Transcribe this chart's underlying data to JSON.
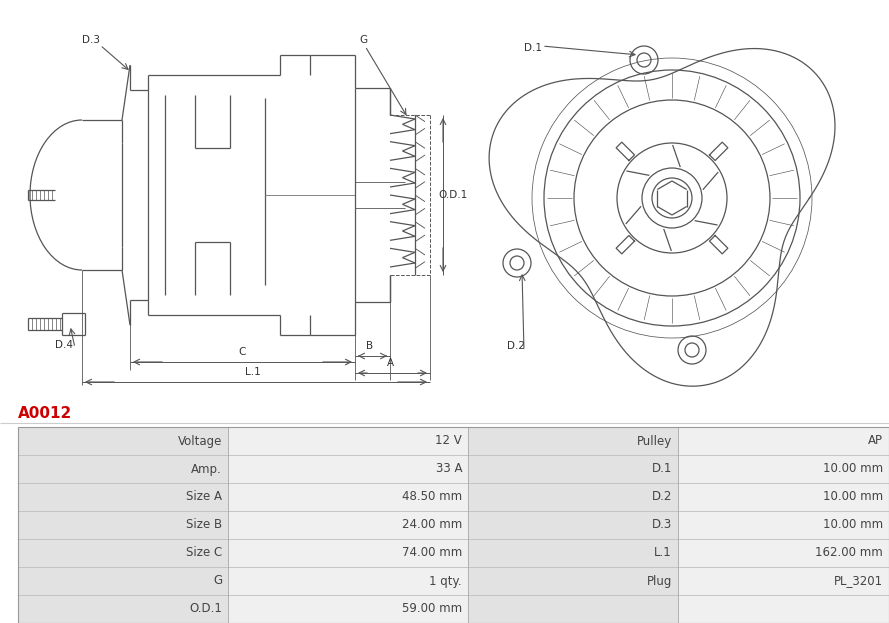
{
  "title": "A0012",
  "title_color": "#cc0000",
  "bg_color": "#ffffff",
  "table_rows": [
    [
      "Voltage",
      "12 V",
      "Pulley",
      "AP"
    ],
    [
      "Amp.",
      "33 A",
      "D.1",
      "10.00 mm"
    ],
    [
      "Size A",
      "48.50 mm",
      "D.2",
      "10.00 mm"
    ],
    [
      "Size B",
      "24.00 mm",
      "D.3",
      "10.00 mm"
    ],
    [
      "Size C",
      "74.00 mm",
      "L.1",
      "162.00 mm"
    ],
    [
      "G",
      "1 qty.",
      "Plug",
      "PL_3201"
    ],
    [
      "O.D.1",
      "59.00 mm",
      "",
      ""
    ]
  ],
  "line_color": "#555555",
  "label_bg": "#e2e2e2",
  "value_bg": "#f0f0f0",
  "font_size_table": 8.5
}
